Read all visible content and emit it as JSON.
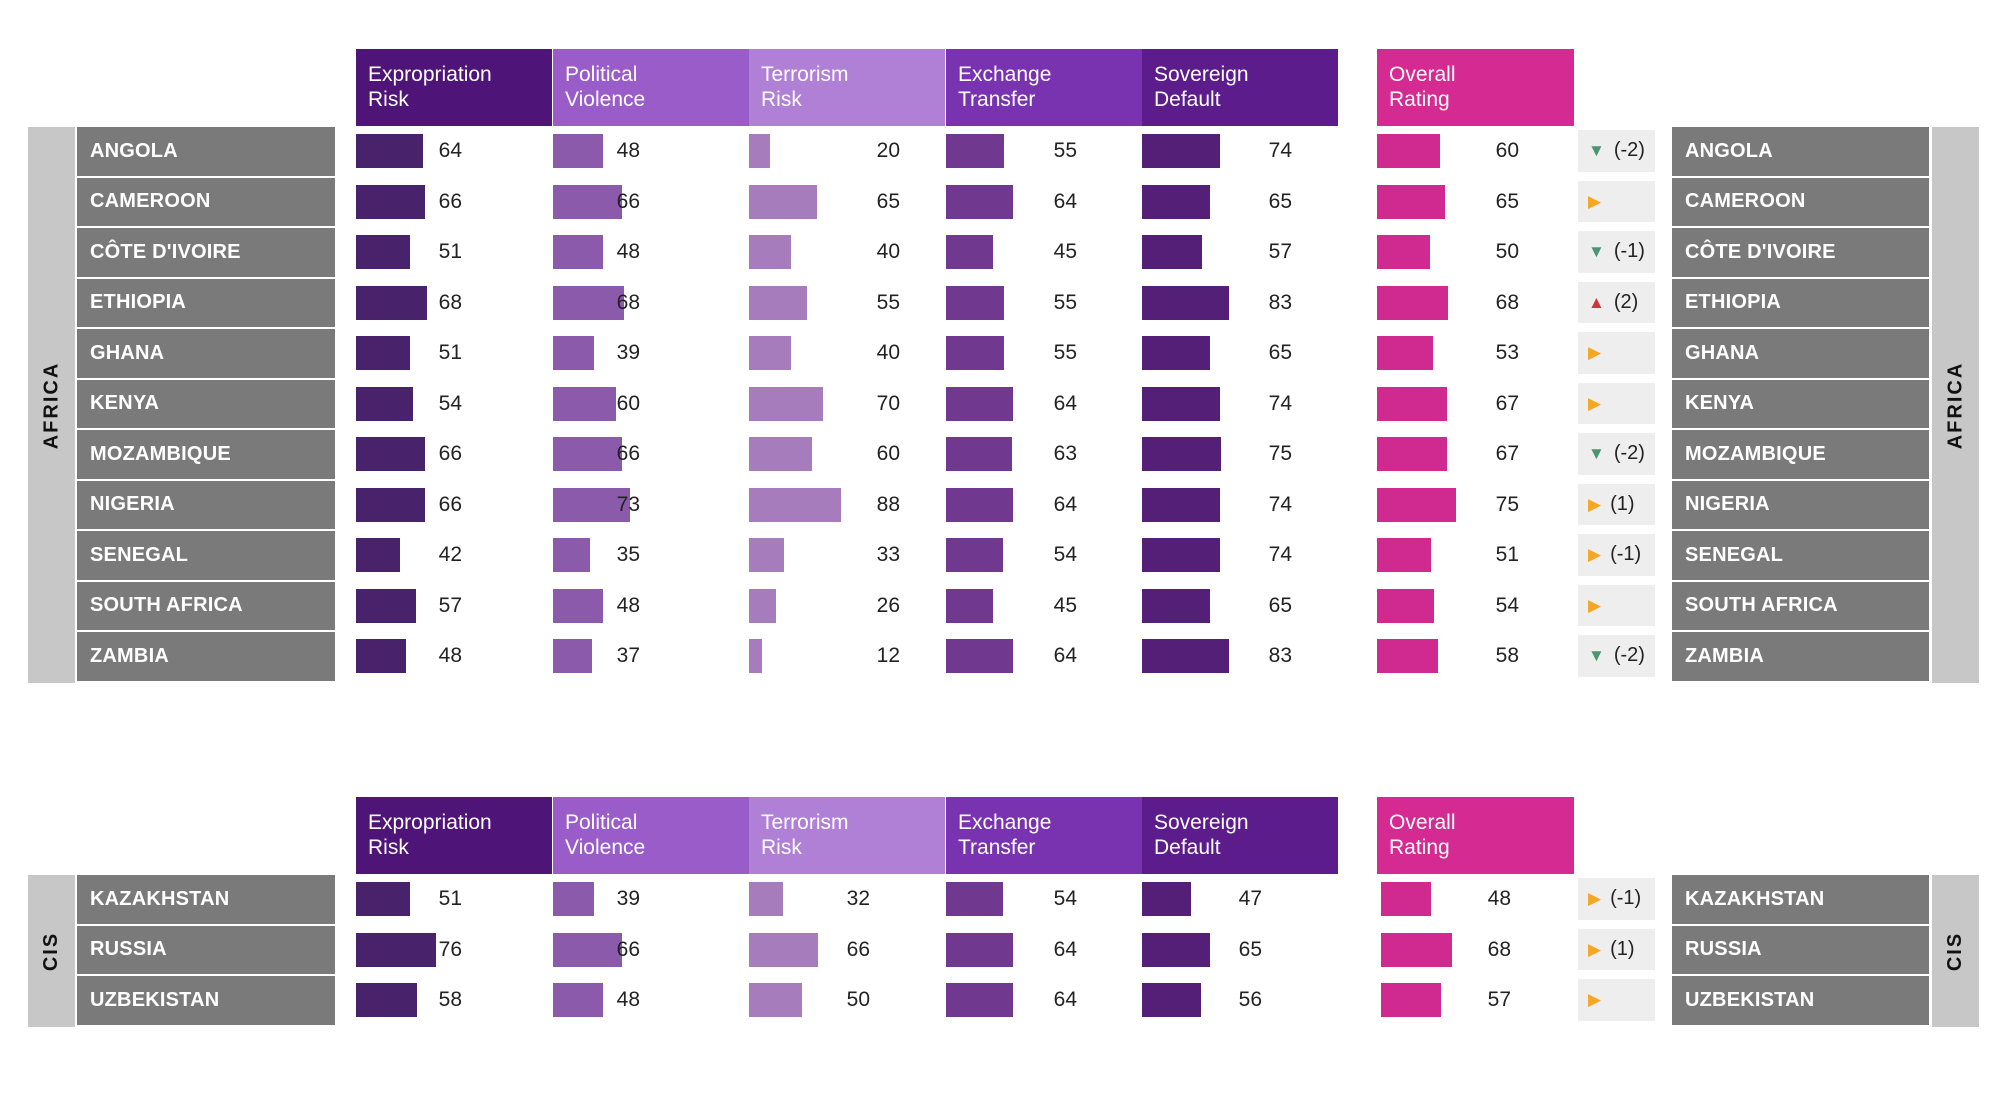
{
  "chart_data": {
    "type": "table",
    "columns": [
      "Expropriation\nRisk",
      "Political\nViolence",
      "Terrorism\nRisk",
      "Exchange\nTransfer",
      "Sovereign\nDefault",
      "Overall\nRating"
    ],
    "column_colors": [
      "#4f1477",
      "#9a5cc8",
      "#b07fd6",
      "#7a33b0",
      "#5c1c8c",
      "#d42a91"
    ],
    "bar_colors": [
      "#48226b",
      "#8c5aab",
      "#a67cbd",
      "#71388f",
      "#542077",
      "#d02a90"
    ],
    "trend_colors": {
      "down": "#4b9672",
      "up": "#d0343d",
      "flat": "#f5a623"
    },
    "groups": [
      {
        "region": "AFRICA",
        "rows": [
          {
            "country": "ANGOLA",
            "values": [
              64,
              48,
              20,
              55,
              74,
              60
            ],
            "trend": "down",
            "change": "(-2)"
          },
          {
            "country": "CAMEROON",
            "values": [
              66,
              66,
              65,
              64,
              65,
              65
            ],
            "trend": "flat",
            "change": ""
          },
          {
            "country": "CÔTE D'IVOIRE",
            "values": [
              51,
              48,
              40,
              45,
              57,
              50
            ],
            "trend": "down",
            "change": "(-1)"
          },
          {
            "country": "ETHIOPIA",
            "values": [
              68,
              68,
              55,
              55,
              83,
              68
            ],
            "trend": "up",
            "change": "(2)"
          },
          {
            "country": "GHANA",
            "values": [
              51,
              39,
              40,
              55,
              65,
              53
            ],
            "trend": "flat",
            "change": ""
          },
          {
            "country": "KENYA",
            "values": [
              54,
              60,
              70,
              64,
              74,
              67
            ],
            "trend": "flat",
            "change": ""
          },
          {
            "country": "MOZAMBIQUE",
            "values": [
              66,
              66,
              60,
              63,
              75,
              67
            ],
            "trend": "down",
            "change": "(-2)"
          },
          {
            "country": "NIGERIA",
            "values": [
              66,
              73,
              88,
              64,
              74,
              75
            ],
            "trend": "flat",
            "change": "(1)"
          },
          {
            "country": "SENEGAL",
            "values": [
              42,
              35,
              33,
              54,
              74,
              51
            ],
            "trend": "flat",
            "change": "(-1)"
          },
          {
            "country": "SOUTH AFRICA",
            "values": [
              57,
              48,
              26,
              45,
              65,
              54
            ],
            "trend": "flat",
            "change": ""
          },
          {
            "country": "ZAMBIA",
            "values": [
              48,
              37,
              12,
              64,
              83,
              58
            ],
            "trend": "down",
            "change": "(-2)"
          }
        ]
      },
      {
        "region": "CIS",
        "rows": [
          {
            "country": "KAZAKHSTAN",
            "values": [
              51,
              39,
              32,
              54,
              47,
              48
            ],
            "trend": "flat",
            "change": "(-1)"
          },
          {
            "country": "RUSSIA",
            "values": [
              76,
              66,
              66,
              64,
              65,
              68
            ],
            "trend": "flat",
            "change": "(1)"
          },
          {
            "country": "UZBEKISTAN",
            "values": [
              58,
              48,
              50,
              64,
              56,
              57
            ],
            "trend": "flat",
            "change": ""
          }
        ]
      }
    ]
  }
}
